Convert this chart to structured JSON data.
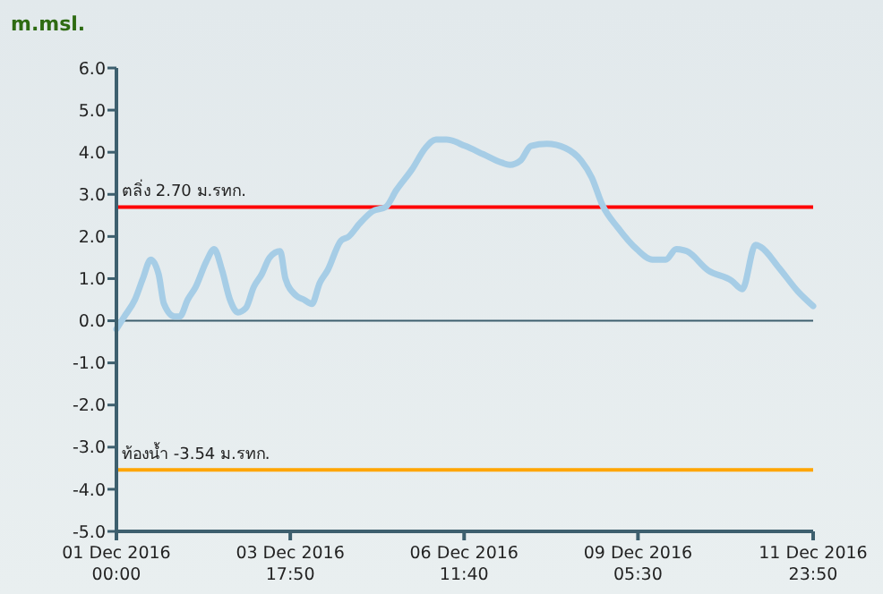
{
  "chart_data": {
    "type": "line",
    "ylabel": "m.msl.",
    "x": [
      "2016-12-01T00:00",
      "2016-12-01T03:00",
      "2016-12-01T07:00",
      "2016-12-01T10:00",
      "2016-12-01T13:00",
      "2016-12-01T16:00",
      "2016-12-01T18:00",
      "2016-12-01T22:00",
      "2016-12-02T00:00",
      "2016-12-02T03:00",
      "2016-12-02T06:00",
      "2016-12-02T10:00",
      "2016-12-02T13:00",
      "2016-12-02T16:00",
      "2016-12-02T19:00",
      "2016-12-02T22:00",
      "2016-12-03T01:00",
      "2016-12-03T04:00",
      "2016-12-03T07:00",
      "2016-12-03T10:00",
      "2016-12-03T14:00",
      "2016-12-03T16:00",
      "2016-12-03T20:00",
      "2016-12-03T23:00",
      "2016-12-04T02:00",
      "2016-12-04T05:00",
      "2016-12-04T08:00",
      "2016-12-04T13:00",
      "2016-12-04T16:00",
      "2016-12-04T20:00",
      "2016-12-05T01:00",
      "2016-12-05T06:00",
      "2016-12-05T10:00",
      "2016-12-05T16:00",
      "2016-12-05T21:00",
      "2016-12-06T01:00",
      "2016-12-06T05:00",
      "2016-12-06T12:00",
      "2016-12-06T19:00",
      "2016-12-07T02:00",
      "2016-12-07T05:00",
      "2016-12-07T09:00",
      "2016-12-07T13:00",
      "2016-12-07T19:00",
      "2016-12-08T02:00",
      "2016-12-08T08:00",
      "2016-12-08T12:00",
      "2016-12-08T16:00",
      "2016-12-08T22:00",
      "2016-12-09T05:00",
      "2016-12-09T11:00",
      "2016-12-09T16:00",
      "2016-12-09T20:00",
      "2016-12-10T00:00",
      "2016-12-10T08:00",
      "2016-12-10T17:00",
      "2016-12-10T21:00",
      "2016-12-11T02:00",
      "2016-12-11T04:00",
      "2016-12-11T11:00",
      "2016-12-11T18:00",
      "2016-12-11T23:50"
    ],
    "series": [
      {
        "color": "#a6cde6",
        "values": [
          -0.2,
          0.1,
          0.5,
          1.0,
          1.45,
          1.1,
          0.4,
          0.1,
          0.1,
          0.5,
          0.8,
          1.4,
          1.7,
          1.2,
          0.5,
          0.2,
          0.3,
          0.8,
          1.1,
          1.5,
          1.65,
          1.0,
          0.6,
          0.5,
          0.4,
          0.9,
          1.2,
          1.9,
          2.0,
          2.3,
          2.6,
          2.7,
          3.1,
          3.6,
          4.1,
          4.3,
          4.3,
          4.15,
          3.95,
          3.75,
          3.7,
          3.8,
          4.15,
          4.2,
          4.1,
          3.8,
          3.4,
          2.75,
          2.2,
          1.7,
          1.45,
          1.45,
          1.7,
          1.65,
          1.2,
          0.95,
          0.75,
          1.8,
          1.75,
          1.25,
          0.7,
          0.35
        ]
      }
    ],
    "xlim": [
      "2016-12-01T00:00",
      "2016-12-11T23:50"
    ],
    "xticks": [
      {
        "value": "2016-12-01T00:00",
        "label": "01 Dec 2016\n00:00"
      },
      {
        "value": "2016-12-03T17:50",
        "label": "03 Dec 2016\n17:50"
      },
      {
        "value": "2016-12-06T11:40",
        "label": "06 Dec 2016\n11:40"
      },
      {
        "value": "2016-12-09T05:30",
        "label": "09 Dec 2016\n05:30"
      },
      {
        "value": "2016-12-11T23:50",
        "label": "11 Dec 2016\n23:50"
      }
    ],
    "ylim": [
      -5,
      6
    ],
    "yticks": [
      {
        "value": -5,
        "label": "-5.0"
      },
      {
        "value": -4,
        "label": "-4.0"
      },
      {
        "value": -3,
        "label": "-3.0"
      },
      {
        "value": -2,
        "label": "-2.0"
      },
      {
        "value": -1,
        "label": "-1.0"
      },
      {
        "value": 0,
        "label": "0.0"
      },
      {
        "value": 1,
        "label": "1.0"
      },
      {
        "value": 2,
        "label": "2.0"
      },
      {
        "value": 3,
        "label": "3.0"
      },
      {
        "value": 4,
        "label": "4.0"
      },
      {
        "value": 5,
        "label": "5.0"
      },
      {
        "value": 6,
        "label": "6.0"
      }
    ],
    "ref_lines": [
      {
        "axis": "y",
        "value": 0,
        "color": "#3d5f6e"
      },
      {
        "axis": "y",
        "value": 2.7,
        "label": "ตลิ่ง 2.70 ม.รทก.",
        "color": "#ff0000"
      },
      {
        "axis": "y",
        "value": -3.54,
        "label": "ท้องน้ำ -3.54 ม.รทก.",
        "color": "#ffa500"
      }
    ],
    "grid": false,
    "marker": "none",
    "line_style": "solid"
  }
}
